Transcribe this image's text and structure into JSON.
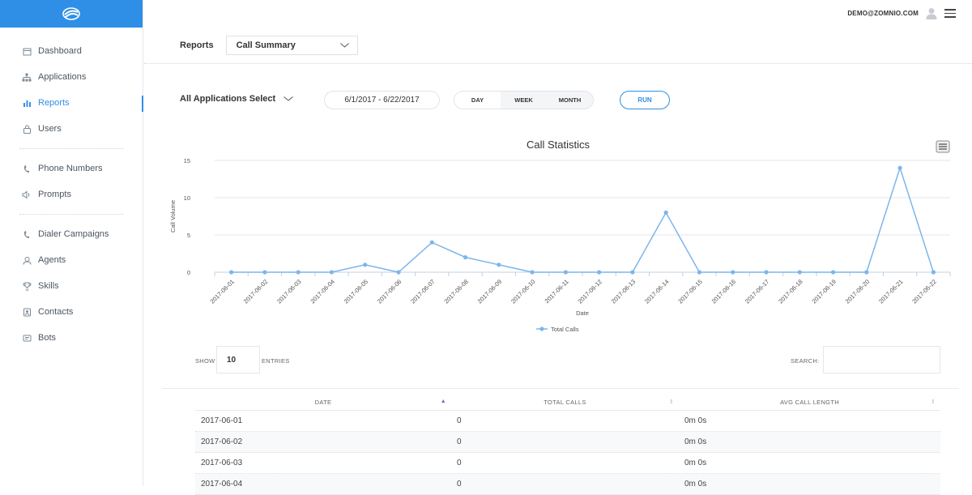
{
  "header": {
    "user_email": "DEMO@ZOMNIO.COM",
    "avatar_icon": "user-avatar-icon",
    "menu_icon": "hamburger-menu-icon"
  },
  "sidebar": {
    "logo_icon": "zomnio-logo-icon",
    "groups": [
      [
        {
          "label": "Dashboard",
          "icon": "calendar-icon"
        },
        {
          "label": "Applications",
          "icon": "sitemap-icon"
        },
        {
          "label": "Reports",
          "icon": "bar-chart-icon",
          "active": true
        },
        {
          "label": "Users",
          "icon": "lock-icon"
        }
      ],
      [
        {
          "label": "Phone Numbers",
          "icon": "phone-icon"
        },
        {
          "label": "Prompts",
          "icon": "speaker-icon"
        }
      ],
      [
        {
          "label": "Dialer Campaigns",
          "icon": "phone-icon"
        },
        {
          "label": "Agents",
          "icon": "headset-icon"
        },
        {
          "label": "Skills",
          "icon": "trophy-icon"
        },
        {
          "label": "Contacts",
          "icon": "address-book-icon"
        },
        {
          "label": "Bots",
          "icon": "bot-icon"
        }
      ]
    ]
  },
  "report_selector": {
    "label": "Reports",
    "selected": "Call Summary"
  },
  "filters": {
    "applications": "All Applications Select",
    "date_range": "6/1/2017 - 6/22/2017",
    "periods": [
      "DAY",
      "WEEK",
      "MONTH"
    ],
    "selected_period": "DAY",
    "run_label": "RUN"
  },
  "chart_data": {
    "type": "line",
    "title": "Call Statistics",
    "xlabel": "Date",
    "ylabel": "Call Volume",
    "ylim": [
      0,
      15
    ],
    "yticks": [
      0,
      5,
      10,
      15
    ],
    "grid": true,
    "legend_position": "bottom-center",
    "categories": [
      "2017-06-01",
      "2017-06-02",
      "2017-06-03",
      "2017-06-04",
      "2017-06-05",
      "2017-06-06",
      "2017-06-07",
      "2017-06-08",
      "2017-06-09",
      "2017-06-10",
      "2017-06-11",
      "2017-06-12",
      "2017-06-13",
      "2017-06-14",
      "2017-06-15",
      "2017-06-16",
      "2017-06-17",
      "2017-06-18",
      "2017-06-19",
      "2017-06-20",
      "2017-06-21",
      "2017-06-22"
    ],
    "series": [
      {
        "name": "Total Calls",
        "color": "#7cb5ec",
        "values": [
          0,
          0,
          0,
          0,
          1,
          0,
          4,
          2,
          1,
          0,
          0,
          0,
          0,
          8,
          0,
          0,
          0,
          0,
          0,
          0,
          14,
          0
        ]
      }
    ],
    "export_icon": "chart-menu-icon"
  },
  "table_controls": {
    "show_label": "SHOW",
    "entries_value": "10",
    "entries_label": "ENTRIES",
    "search_label": "SEARCH:",
    "search_value": ""
  },
  "table": {
    "columns": [
      "DATE",
      "TOTAL CALLS",
      "AVG CALL LENGTH"
    ],
    "rows": [
      [
        "2017-06-01",
        "0",
        "0m 0s"
      ],
      [
        "2017-06-02",
        "0",
        "0m 0s"
      ],
      [
        "2017-06-03",
        "0",
        "0m 0s"
      ],
      [
        "2017-06-04",
        "0",
        "0m 0s"
      ]
    ]
  }
}
